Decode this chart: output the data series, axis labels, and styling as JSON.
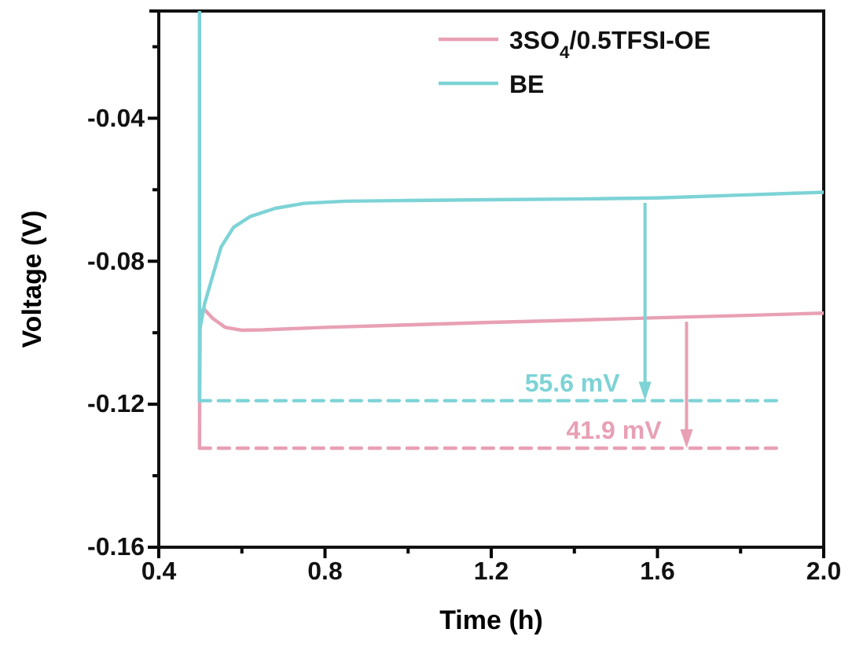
{
  "chart_data": {
    "type": "line",
    "xlabel": "Time (h)",
    "ylabel": "Voltage (V)",
    "xlim": [
      0.4,
      2.0
    ],
    "ylim": [
      -0.16,
      -0.01
    ],
    "xticks": [
      0.4,
      {
        "value": 0.6,
        "label": null
      },
      0.8,
      {
        "value": 1.0,
        "label": null
      },
      1.2,
      {
        "value": 1.4,
        "label": null
      },
      1.6,
      {
        "value": 1.8,
        "label": null
      },
      {
        "value": 2.0,
        "label": "2.0"
      }
    ],
    "yticks": [
      -0.16,
      {
        "value": -0.14,
        "label": null
      },
      -0.12,
      {
        "value": -0.1,
        "label": null
      },
      -0.08,
      {
        "value": -0.06,
        "label": null
      },
      -0.04,
      {
        "value": -0.02,
        "label": null
      }
    ],
    "legend": "top right",
    "grid": false,
    "series": [
      {
        "name": "3SO$_{4}$/0.5TFSI-OE",
        "color": "#e8a0b4",
        "x": [
          0.498,
          0.499,
          0.51,
          0.53,
          0.56,
          0.6,
          0.65,
          0.8,
          1.0,
          1.2,
          1.4,
          1.6,
          1.8,
          2.0
        ],
        "values": [
          -0.1323,
          -0.094,
          -0.0935,
          -0.096,
          -0.0985,
          -0.0993,
          -0.0992,
          -0.0985,
          -0.0978,
          -0.0971,
          -0.0965,
          -0.0958,
          -0.0952,
          -0.0945
        ]
      },
      {
        "name": "BE",
        "color": "#7dd3d6",
        "x": [
          0.498,
          0.498,
          0.499,
          0.51,
          0.53,
          0.55,
          0.58,
          0.62,
          0.68,
          0.75,
          0.85,
          1.0,
          1.2,
          1.4,
          1.6,
          1.8,
          2.0
        ],
        "values": [
          -0.01,
          -0.119,
          -0.099,
          -0.092,
          -0.084,
          -0.076,
          -0.0705,
          -0.0675,
          -0.0652,
          -0.0638,
          -0.0632,
          -0.063,
          -0.0628,
          -0.0626,
          -0.0623,
          -0.0615,
          -0.0607
        ]
      },
      {
        "type": "line",
        "line_style": "dashed",
        "color": "#e8a0b4",
        "x": [
          0.498,
          1.9
        ],
        "values": [
          -0.1323,
          -0.1323
        ]
      },
      {
        "type": "line",
        "line_style": "dashed",
        "color": "#7dd3d6",
        "x": [
          0.498,
          1.9
        ],
        "values": [
          -0.119,
          -0.119
        ]
      }
    ],
    "annotations": [
      {
        "text": "55.6 mV",
        "x": 1.57,
        "y": -0.119
      },
      {
        "text": "41.9 mV",
        "x": 1.67,
        "y": -0.1323
      }
    ]
  }
}
